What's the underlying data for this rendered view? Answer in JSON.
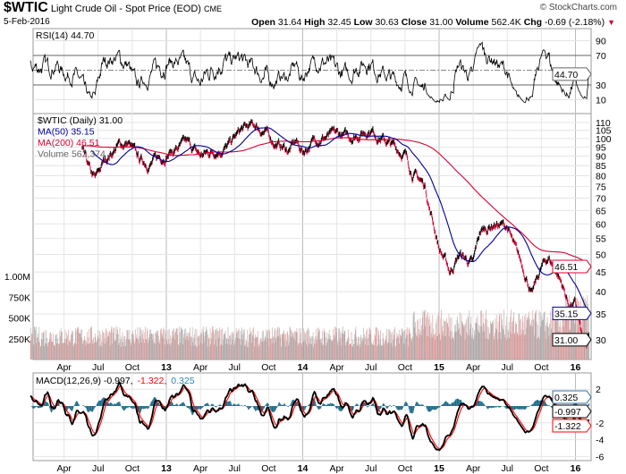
{
  "header": {
    "symbol": "$WTIC",
    "name": "Light Crude Oil - Spot Price (EOD)",
    "exchange": "CME",
    "copyright": "© StockCharts.com",
    "date": "5-Feb-2016",
    "open_label": "Open",
    "open": "31.64",
    "high_label": "High",
    "high": "32.45",
    "low_label": "Low",
    "low": "30.63",
    "close_label": "Close",
    "close": "31.00",
    "volume_label": "Volume",
    "volume": "562.4K",
    "chg_label": "Chg",
    "chg": "-0.69 (-2.18%)",
    "chg_icon": "down-triangle-icon"
  },
  "colors": {
    "price_up": "#000000",
    "price_down": "#cc0033",
    "ma50": "#000099",
    "ma200": "#dd0033",
    "volume_up": "#a8a8a8",
    "volume_down": "#d99a9a",
    "macd": "#000000",
    "signal": "#ff0000",
    "histogram": "#1f6a8a",
    "rsi": "#000000"
  },
  "chart_data": [
    {
      "type": "line",
      "title": "RSI(14) 44.70",
      "legend": "RSI(14) 44.70",
      "ylim": [
        0,
        100
      ],
      "yticks": [
        "90",
        "70",
        "50",
        "30",
        "10"
      ],
      "last_value": "44.70",
      "bands": [
        30,
        70
      ]
    },
    {
      "type": "line",
      "title": "$WTIC (Daily) 31.00",
      "legend": [
        "$WTIC (Daily) 31.00",
        "MA(50) 35.15",
        "MA(200) 46.51",
        "Volume 562,374"
      ],
      "yscale": "log",
      "ylim": [
        28,
        115
      ],
      "yticks": [
        "110",
        "105",
        "100",
        "95",
        "90",
        "85",
        "80",
        "75",
        "70",
        "65",
        "60",
        "55",
        "50",
        "45",
        "40",
        "35",
        "30"
      ],
      "volume_ticks": [
        "1.00M",
        "750K",
        "500K",
        "250K"
      ],
      "xticks": [
        "Apr",
        "Jul",
        "Oct",
        "13",
        "Apr",
        "Jul",
        "Oct",
        "14",
        "Apr",
        "Jul",
        "Oct",
        "15",
        "Apr",
        "Jul",
        "Oct",
        "16"
      ],
      "last_values": {
        "ma200": "46.51",
        "ma50": "35.15",
        "close": "31.00"
      },
      "close_keyframes": [
        [
          2011.3,
          95
        ],
        [
          2011.7,
          88
        ],
        [
          2012.0,
          98
        ],
        [
          2012.2,
          104
        ],
        [
          2012.38,
          92
        ],
        [
          2012.45,
          80
        ],
        [
          2012.48,
          78
        ],
        [
          2012.55,
          88
        ],
        [
          2012.65,
          96
        ],
        [
          2012.72,
          97
        ],
        [
          2012.8,
          88
        ],
        [
          2012.88,
          86
        ],
        [
          2012.95,
          89
        ],
        [
          2013.05,
          93
        ],
        [
          2013.15,
          97
        ],
        [
          2013.25,
          90
        ],
        [
          2013.35,
          93
        ],
        [
          2013.45,
          95
        ],
        [
          2013.55,
          105
        ],
        [
          2013.65,
          108
        ],
        [
          2013.72,
          104
        ],
        [
          2013.8,
          97
        ],
        [
          2013.9,
          93
        ],
        [
          2013.95,
          98
        ],
        [
          2014.0,
          92
        ],
        [
          2014.1,
          100
        ],
        [
          2014.25,
          102
        ],
        [
          2014.35,
          101
        ],
        [
          2014.45,
          104
        ],
        [
          2014.5,
          106
        ],
        [
          2014.55,
          102
        ],
        [
          2014.65,
          96
        ],
        [
          2014.75,
          91
        ],
        [
          2014.8,
          82
        ],
        [
          2014.9,
          75
        ],
        [
          2014.93,
          66
        ],
        [
          2015.0,
          52
        ],
        [
          2015.08,
          45
        ],
        [
          2015.15,
          50
        ],
        [
          2015.25,
          47
        ],
        [
          2015.3,
          57
        ],
        [
          2015.4,
          60
        ],
        [
          2015.5,
          59
        ],
        [
          2015.55,
          52
        ],
        [
          2015.65,
          43
        ],
        [
          2015.68,
          39
        ],
        [
          2015.75,
          46
        ],
        [
          2015.8,
          49
        ],
        [
          2015.85,
          46
        ],
        [
          2015.9,
          42
        ],
        [
          2015.95,
          37
        ],
        [
          2016.0,
          37
        ],
        [
          2016.05,
          30
        ],
        [
          2016.08,
          28
        ],
        [
          2016.1,
          31
        ]
      ]
    },
    {
      "type": "line",
      "title": "MACD(12,26,9)",
      "legend_name": "MACD(12,26,9)",
      "macd": "-0.997",
      "signal": "-1.322",
      "histogram": "0.325",
      "ylim": [
        -6.5,
        3.5
      ],
      "yticks": [
        "2",
        "-2",
        "-4",
        "-6"
      ]
    }
  ]
}
